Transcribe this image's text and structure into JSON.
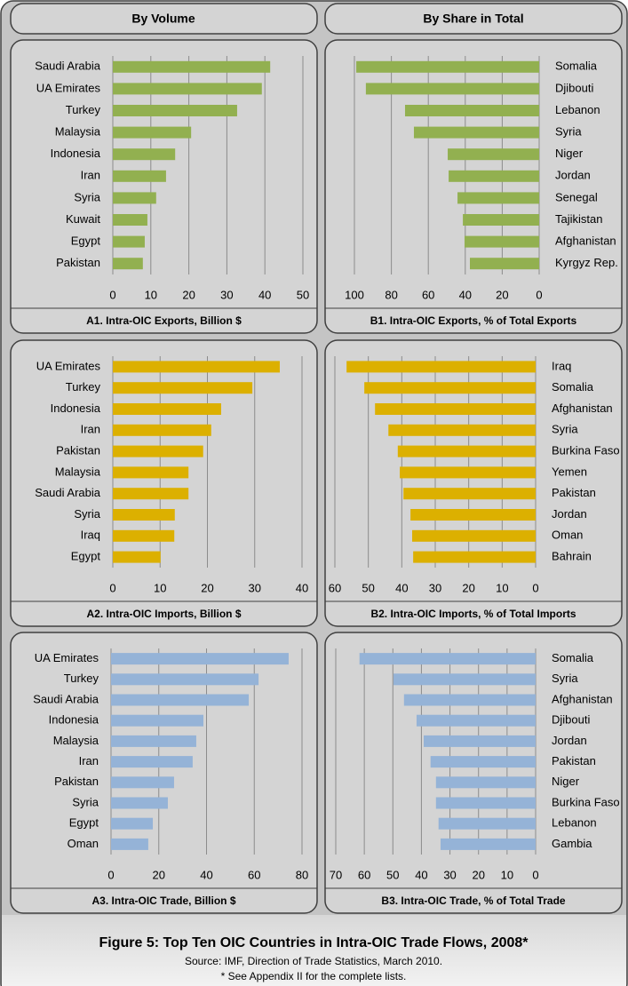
{
  "headers": [
    "By Volume",
    "By Share in Total"
  ],
  "figure": {
    "title": "Figure 5: Top Ten OIC Countries in Intra-OIC Trade Flows, 2008*",
    "source": "Source: IMF, Direction of Trade Statistics, March 2010.",
    "note": "* See Appendix II for the complete lists."
  },
  "chart_data": [
    {
      "type": "bar",
      "title": "A1. Intra-OIC Exports, Billion $",
      "color": "#92b050",
      "categories": [
        "Saudi Arabia",
        "UA Emirates",
        "Turkey",
        "Malaysia",
        "Indonesia",
        "Iran",
        "Syria",
        "Kuwait",
        "Egypt",
        "Pakistan"
      ],
      "values": [
        41.4,
        39.2,
        32.7,
        20.6,
        16.4,
        14,
        11.4,
        9.1,
        8.4,
        7.9
      ],
      "xlim": [
        0,
        50
      ],
      "xticks": [
        0,
        10,
        20,
        30,
        40,
        50
      ],
      "grid": true
    },
    {
      "type": "bar",
      "title": "B1. Intra-OIC Exports, % of Total Exports",
      "color": "#92b050",
      "categories": [
        "Somalia",
        "Djibouti",
        "Lebanon",
        "Syria",
        "Niger",
        "Jordan",
        "Senegal",
        "Tajikistan",
        "Afghanistan",
        "Kyrgyz Rep."
      ],
      "values": [
        99,
        93.8,
        72.6,
        67.8,
        49.5,
        49,
        44.2,
        41.3,
        40.4,
        37.5
      ],
      "xlim": [
        100,
        0
      ],
      "xticks": [
        100,
        80,
        60,
        40,
        20,
        0
      ],
      "grid": true
    },
    {
      "type": "bar",
      "title": "A2. Intra-OIC Imports, Billion $",
      "color": "#dcb000",
      "categories": [
        "UA Emirates",
        "Turkey",
        "Indonesia",
        "Iran",
        "Pakistan",
        "Malaysia",
        "Saudi Arabia",
        "Syria",
        "Iraq",
        "Egypt"
      ],
      "values": [
        35.3,
        29.5,
        22.9,
        20.8,
        19.1,
        16,
        16,
        13.1,
        13,
        10.1
      ],
      "xlim": [
        0,
        40
      ],
      "xticks": [
        0,
        10,
        20,
        30,
        40
      ],
      "grid": true
    },
    {
      "type": "bar",
      "title": "B2. Intra-OIC Imports, % of Total Imports",
      "color": "#dcb000",
      "categories": [
        "Iraq",
        "Somalia",
        "Afghanistan",
        "Syria",
        "Burkina Faso",
        "Yemen",
        "Pakistan",
        "Jordan",
        "Oman",
        "Bahrain"
      ],
      "values": [
        56.5,
        51.2,
        48,
        44,
        41.2,
        40.6,
        39.5,
        37.4,
        36.9,
        36.6
      ],
      "xlim": [
        60,
        0
      ],
      "xticks": [
        60,
        50,
        40,
        30,
        20,
        10,
        0
      ],
      "grid": true
    },
    {
      "type": "bar",
      "title": "A3. Intra-OIC Trade, Billion $",
      "color": "#95b3d7",
      "categories": [
        "UA Emirates",
        "Turkey",
        "Saudi Arabia",
        "Indonesia",
        "Malaysia",
        "Iran",
        "Pakistan",
        "Syria",
        "Egypt",
        "Oman"
      ],
      "values": [
        74.4,
        61.8,
        57.7,
        38.7,
        35.7,
        34.2,
        26.4,
        23.8,
        17.5,
        15.6
      ],
      "xlim": [
        0,
        80
      ],
      "xticks": [
        0,
        20,
        40,
        60,
        80
      ],
      "grid": true
    },
    {
      "type": "bar",
      "title": "B3. Intra-OIC Trade, % of Total Trade",
      "color": "#95b3d7",
      "categories": [
        "Somalia",
        "Syria",
        "Afghanistan",
        "Djibouti",
        "Jordan",
        "Pakistan",
        "Niger",
        "Burkina Faso",
        "Lebanon",
        "Gambia"
      ],
      "values": [
        61.7,
        49.8,
        46.1,
        41.7,
        39.2,
        36.8,
        34.9,
        34.9,
        34,
        33.3
      ],
      "xlim": [
        70,
        0
      ],
      "xticks": [
        70,
        60,
        50,
        40,
        30,
        20,
        10,
        0
      ],
      "grid": true
    }
  ]
}
